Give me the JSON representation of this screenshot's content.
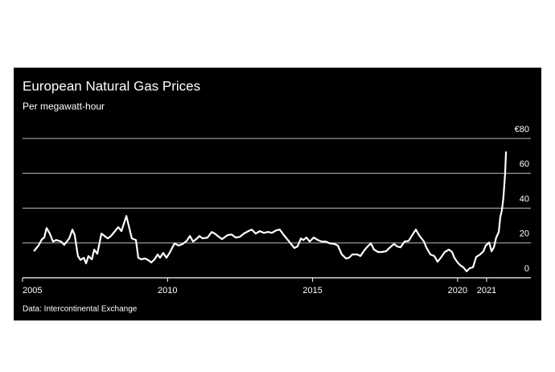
{
  "chart_data": {
    "type": "line",
    "title": "European Natural Gas Prices",
    "subtitle": "Per megawatt-hour",
    "source": "Data: Intercontinental Exchange",
    "x": [
      2005.39,
      2005.55,
      2005.67,
      2005.75,
      2005.83,
      2005.94,
      2006.05,
      2006.16,
      2006.33,
      2006.44,
      2006.61,
      2006.72,
      2006.8,
      2006.91,
      2007.0,
      2007.11,
      2007.19,
      2007.27,
      2007.39,
      2007.47,
      2007.58,
      2007.72,
      2007.83,
      2007.94,
      2008.05,
      2008.19,
      2008.3,
      2008.41,
      2008.58,
      2008.66,
      2008.77,
      2008.91,
      2008.99,
      2009.1,
      2009.22,
      2009.33,
      2009.44,
      2009.55,
      2009.66,
      2009.74,
      2009.85,
      2009.96,
      2010.07,
      2010.24,
      2010.38,
      2010.52,
      2010.66,
      2010.77,
      2010.88,
      2010.99,
      2011.1,
      2011.21,
      2011.38,
      2011.52,
      2011.63,
      2011.77,
      2011.88,
      2012.07,
      2012.21,
      2012.35,
      2012.49,
      2012.63,
      2012.79,
      2012.9,
      2013.04,
      2013.18,
      2013.32,
      2013.46,
      2013.6,
      2013.74,
      2013.87,
      2014.01,
      2014.15,
      2014.26,
      2014.37,
      2014.48,
      2014.6,
      2014.68,
      2014.79,
      2014.9,
      2015.04,
      2015.18,
      2015.32,
      2015.46,
      2015.59,
      2015.76,
      2015.87,
      2016.01,
      2016.15,
      2016.26,
      2016.37,
      2016.54,
      2016.65,
      2016.76,
      2016.87,
      2017.01,
      2017.12,
      2017.26,
      2017.37,
      2017.53,
      2017.67,
      2017.81,
      2017.92,
      2018.03,
      2018.17,
      2018.31,
      2018.45,
      2018.56,
      2018.67,
      2018.84,
      2018.92,
      2019.06,
      2019.2,
      2019.31,
      2019.42,
      2019.56,
      2019.7,
      2019.81,
      2019.89,
      2020.0,
      2020.11,
      2020.2,
      2020.31,
      2020.42,
      2020.53,
      2020.64,
      2020.78,
      2020.89,
      2020.97,
      2021.09,
      2021.17,
      2021.25,
      2021.33,
      2021.42,
      2021.47,
      2021.53,
      2021.58,
      2021.64,
      2021.67
    ],
    "series": [
      {
        "color": "#ffffff",
        "values": [
          15.2,
          18.5,
          22.2,
          23.1,
          28.6,
          25.4,
          20.8,
          21.7,
          20.8,
          18.9,
          22.6,
          27.7,
          24.5,
          12.5,
          10.2,
          11.5,
          8.3,
          12.5,
          10.6,
          16.2,
          13.8,
          25.4,
          24.0,
          22.6,
          24.0,
          26.8,
          29.1,
          26.8,
          35.5,
          30.0,
          22.6,
          21.7,
          11.5,
          10.6,
          11.1,
          10.2,
          8.8,
          10.6,
          13.4,
          11.5,
          14.3,
          11.5,
          14.3,
          19.8,
          18.5,
          19.4,
          21.2,
          24.0,
          20.8,
          22.2,
          24.0,
          22.6,
          23.1,
          26.3,
          25.4,
          23.5,
          22.2,
          24.5,
          24.9,
          23.1,
          23.5,
          25.4,
          26.8,
          27.7,
          25.4,
          26.8,
          25.8,
          26.3,
          25.8,
          27.2,
          27.7,
          24.5,
          21.7,
          19.4,
          17.1,
          18.0,
          22.6,
          21.7,
          23.1,
          20.8,
          23.1,
          21.7,
          20.8,
          20.8,
          19.8,
          19.4,
          18.5,
          13.4,
          11.1,
          11.5,
          13.4,
          13.4,
          12.5,
          15.2,
          17.5,
          19.8,
          16.2,
          14.8,
          14.8,
          15.2,
          17.5,
          19.4,
          18.0,
          17.5,
          20.8,
          21.2,
          24.9,
          27.7,
          24.5,
          20.8,
          17.5,
          13.4,
          12.5,
          9.2,
          11.5,
          14.8,
          16.2,
          14.8,
          11.5,
          8.8,
          6.9,
          6.0,
          3.7,
          5.5,
          6.0,
          12.0,
          13.4,
          15.2,
          18.5,
          20.3,
          15.2,
          17.5,
          23.1,
          26.3,
          34.6,
          39.2,
          46.2,
          60.0,
          72.5
        ]
      }
    ],
    "xlim": [
      2005,
      2021.75
    ],
    "xticks": [
      2005,
      2010,
      2015,
      2020,
      2021
    ],
    "ylim": [
      0,
      80
    ],
    "yticks": [
      0,
      20,
      40,
      60,
      {
        "value": 80,
        "label": "€80"
      }
    ],
    "grid": true
  }
}
